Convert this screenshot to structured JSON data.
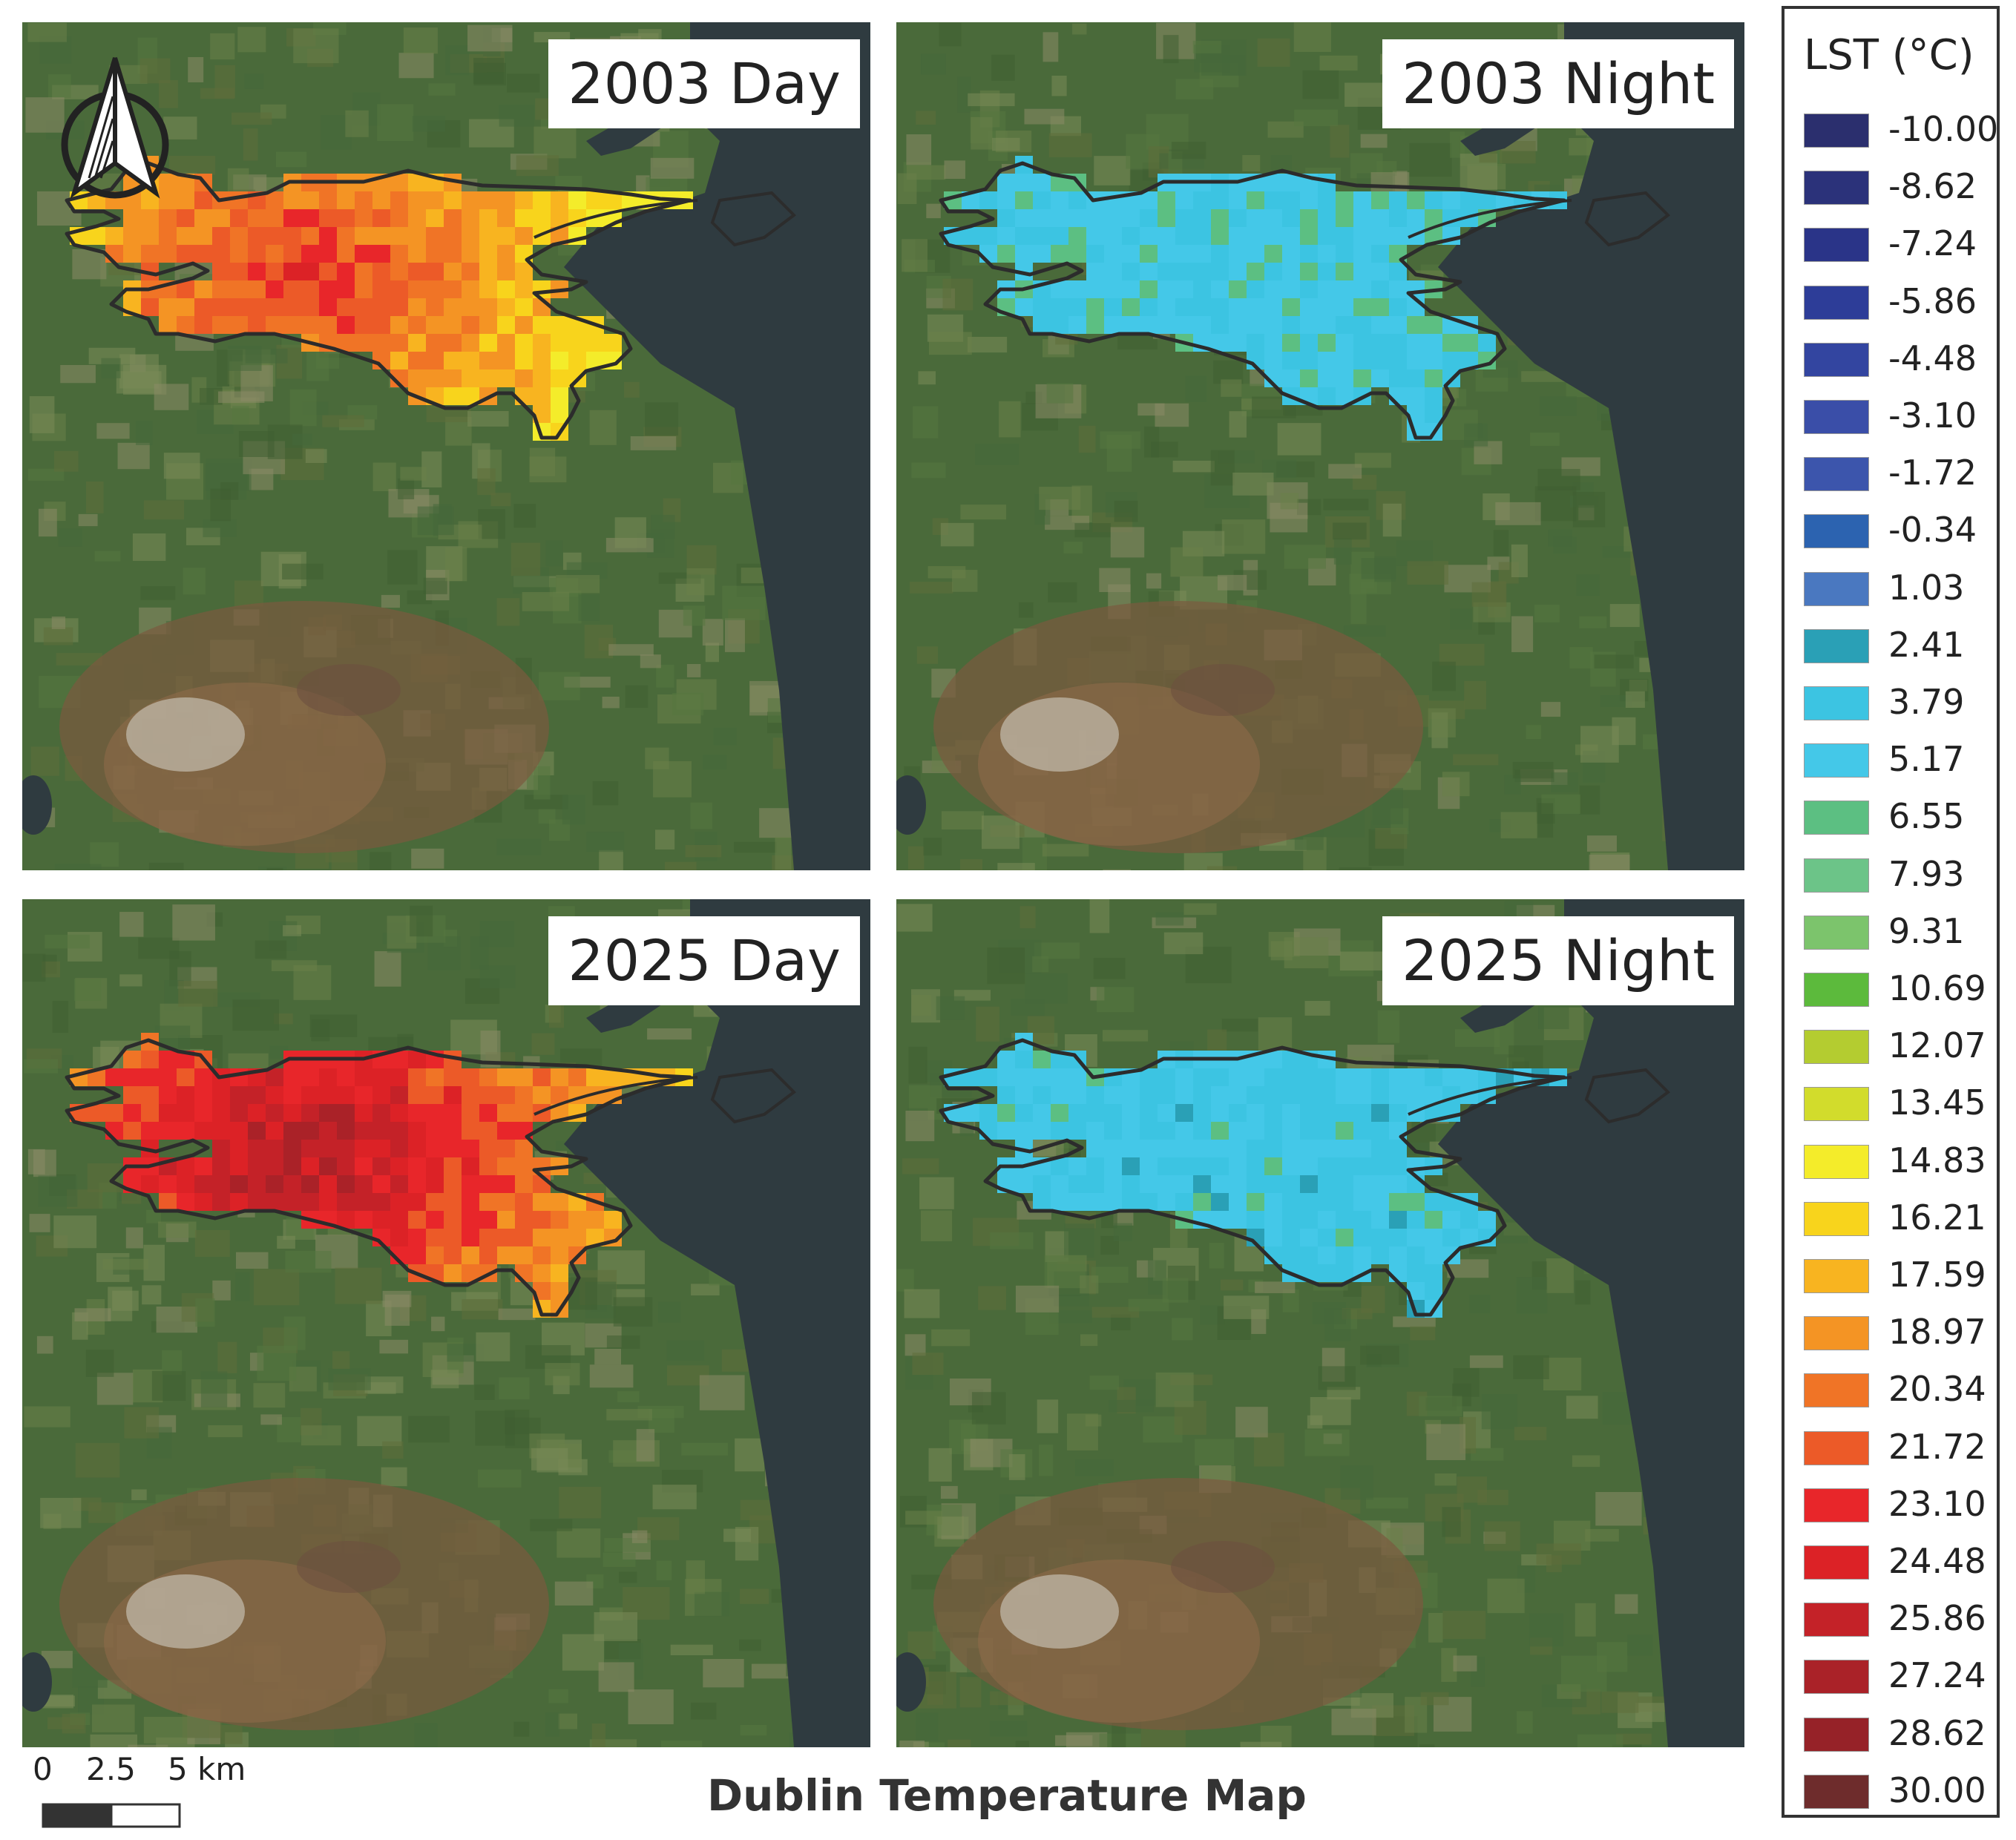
{
  "map_title": "Dublin Temperature Map",
  "panels": [
    {
      "label": "2003 Day",
      "mode": "day",
      "variant": 0
    },
    {
      "label": "2003 Night",
      "mode": "night",
      "variant": 0
    },
    {
      "label": "2025 Day",
      "mode": "day",
      "variant": 1
    },
    {
      "label": "2025 Night",
      "mode": "night",
      "variant": 1
    }
  ],
  "legend": {
    "title": "LST (°C)",
    "items": [
      {
        "label": "-10.00",
        "color": "#2b2f6e"
      },
      {
        "label": "-8.62",
        "color": "#2b327a"
      },
      {
        "label": "-7.24",
        "color": "#2a3488"
      },
      {
        "label": "-5.86",
        "color": "#2d3d98"
      },
      {
        "label": "-4.48",
        "color": "#3345a0"
      },
      {
        "label": "-3.10",
        "color": "#3a4ea8"
      },
      {
        "label": "-1.72",
        "color": "#3c55ac"
      },
      {
        "label": "-0.34",
        "color": "#2c63b0"
      },
      {
        "label": "1.03",
        "color": "#4a78c0"
      },
      {
        "label": "2.41",
        "color": "#2aa0b6"
      },
      {
        "label": "3.79",
        "color": "#3cc4e2"
      },
      {
        "label": "5.17",
        "color": "#44c8e8"
      },
      {
        "label": "6.55",
        "color": "#5cbf82"
      },
      {
        "label": "7.93",
        "color": "#6cc488"
      },
      {
        "label": "9.31",
        "color": "#7cc46c"
      },
      {
        "label": "10.69",
        "color": "#5cba3c"
      },
      {
        "label": "12.07",
        "color": "#b4cc30"
      },
      {
        "label": "13.45",
        "color": "#d2dc2c"
      },
      {
        "label": "14.83",
        "color": "#f4ec2a"
      },
      {
        "label": "16.21",
        "color": "#f8d41c"
      },
      {
        "label": "17.59",
        "color": "#f8b420"
      },
      {
        "label": "18.97",
        "color": "#f49424"
      },
      {
        "label": "20.34",
        "color": "#f07426"
      },
      {
        "label": "21.72",
        "color": "#ec5a28"
      },
      {
        "label": "23.10",
        "color": "#e8262a"
      },
      {
        "label": "24.48",
        "color": "#dc2226"
      },
      {
        "label": "25.86",
        "color": "#c42228"
      },
      {
        "label": "27.24",
        "color": "#aa2228"
      },
      {
        "label": "28.62",
        "color": "#962228"
      },
      {
        "label": "30.00",
        "color": "#6e2c2c"
      }
    ]
  },
  "scale_bar": {
    "labels": [
      "0",
      "2.5",
      "5 km"
    ]
  },
  "north_arrow": "north-arrow-icon"
}
